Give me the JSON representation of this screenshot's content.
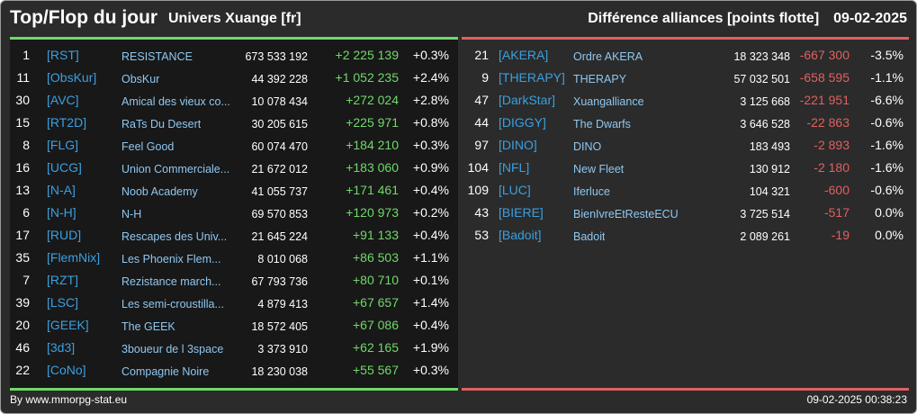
{
  "header": {
    "title": "Top/Flop du jour",
    "universe": "Univers Xuange [fr]",
    "metric": "Différence alliances [points flotte]",
    "date": "09-02-2025"
  },
  "colors": {
    "positive": "#6fd96a",
    "negative": "#e06060",
    "tag": "#3aa0e0",
    "name": "#8ec7f0"
  },
  "top": [
    {
      "rank": "1",
      "tag": "[RST]",
      "name": "RESISTANCE",
      "points": "673 533 192",
      "diff": "+2 225 139",
      "pct": "+0.3%"
    },
    {
      "rank": "11",
      "tag": "[ObsKur]",
      "name": "ObsKur",
      "points": "44 392 228",
      "diff": "+1 052 235",
      "pct": "+2.4%"
    },
    {
      "rank": "30",
      "tag": "[AVC]",
      "name": "Amical des vieux co...",
      "points": "10 078 434",
      "diff": "+272 024",
      "pct": "+2.8%"
    },
    {
      "rank": "15",
      "tag": "[RT2D]",
      "name": "RaTs Du Desert",
      "points": "30 205 615",
      "diff": "+225 971",
      "pct": "+0.8%"
    },
    {
      "rank": "8",
      "tag": "[FLG]",
      "name": "Feel Good",
      "points": "60 074 470",
      "diff": "+184 210",
      "pct": "+0.3%"
    },
    {
      "rank": "16",
      "tag": "[UCG]",
      "name": "Union Commerciale...",
      "points": "21 672 012",
      "diff": "+183 060",
      "pct": "+0.9%"
    },
    {
      "rank": "13",
      "tag": "[N-A]",
      "name": "Noob Academy",
      "points": "41 055 737",
      "diff": "+171 461",
      "pct": "+0.4%"
    },
    {
      "rank": "6",
      "tag": "[N-H]",
      "name": "N-H",
      "points": "69 570 853",
      "diff": "+120 973",
      "pct": "+0.2%"
    },
    {
      "rank": "17",
      "tag": "[RUD]",
      "name": "Rescapes des Univ...",
      "points": "21 645 224",
      "diff": "+91 133",
      "pct": "+0.4%"
    },
    {
      "rank": "35",
      "tag": "[FlemNix]",
      "name": "Les Phoenix Flem...",
      "points": "8 010 068",
      "diff": "+86 503",
      "pct": "+1.1%"
    },
    {
      "rank": "7",
      "tag": "[RZT]",
      "name": "Rezistance march...",
      "points": "67 793 736",
      "diff": "+80 710",
      "pct": "+0.1%"
    },
    {
      "rank": "39",
      "tag": "[LSC]",
      "name": "Les semi-croustilla...",
      "points": "4 879 413",
      "diff": "+67 657",
      "pct": "+1.4%"
    },
    {
      "rank": "20",
      "tag": "[GEEK]",
      "name": "The GEEK",
      "points": "18 572 405",
      "diff": "+67 086",
      "pct": "+0.4%"
    },
    {
      "rank": "46",
      "tag": "[3d3]",
      "name": "3boueur de l 3space",
      "points": "3 373 910",
      "diff": "+62 165",
      "pct": "+1.9%"
    },
    {
      "rank": "22",
      "tag": "[CoNo]",
      "name": "Compagnie Noire",
      "points": "18 230 038",
      "diff": "+55 567",
      "pct": "+0.3%"
    }
  ],
  "flop": [
    {
      "rank": "21",
      "tag": "[AKERA]",
      "name": "Ordre AKERA",
      "points": "18 323 348",
      "diff": "-667 300",
      "pct": "-3.5%"
    },
    {
      "rank": "9",
      "tag": "[THERAPY]",
      "name": "THERAPY",
      "points": "57 032 501",
      "diff": "-658 595",
      "pct": "-1.1%"
    },
    {
      "rank": "47",
      "tag": "[DarkStar]",
      "name": "Xuangalliance",
      "points": "3 125 668",
      "diff": "-221 951",
      "pct": "-6.6%"
    },
    {
      "rank": "44",
      "tag": "[DIGGY]",
      "name": "The Dwarfs",
      "points": "3 646 528",
      "diff": "-22 863",
      "pct": "-0.6%"
    },
    {
      "rank": "97",
      "tag": "[DINO]",
      "name": "DINO",
      "points": "183 493",
      "diff": "-2 893",
      "pct": "-1.6%"
    },
    {
      "rank": "104",
      "tag": "[NFL]",
      "name": "New Fleet",
      "points": "130 912",
      "diff": "-2 180",
      "pct": "-1.6%"
    },
    {
      "rank": "109",
      "tag": "[LUC]",
      "name": "Iferluce",
      "points": "104 321",
      "diff": "-600",
      "pct": "-0.6%"
    },
    {
      "rank": "43",
      "tag": "[BIERE]",
      "name": "BienIvreEtResteECU",
      "points": "3 725 514",
      "diff": "-517",
      "pct": "0.0%"
    },
    {
      "rank": "53",
      "tag": "[Badoit]",
      "name": "Badoit",
      "points": "2 089 261",
      "diff": "-19",
      "pct": "0.0%"
    }
  ],
  "footer": {
    "source": "By www.mmorpg-stat.eu",
    "timestamp": "09-02-2025 00:38:23"
  }
}
